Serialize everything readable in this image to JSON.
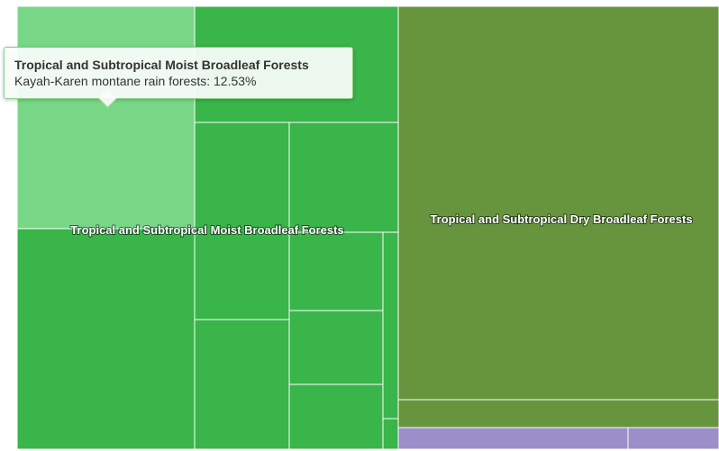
{
  "chart_data": {
    "type": "treemap",
    "groups": [
      {
        "name": "Tropical and Subtropical Moist Broadleaf Forests",
        "color": "#39b54a",
        "cells": [
          {
            "name": "Kayah-Karen montane rain forests",
            "value": 12.53,
            "highlighted": true
          },
          {
            "name": "",
            "value": 8.4
          },
          {
            "name": "",
            "value": 4.2
          },
          {
            "name": "",
            "value": 3.6
          },
          {
            "name": "",
            "value": 3.3
          },
          {
            "name": "",
            "value": 2.7
          },
          {
            "name": "",
            "value": 2.8
          },
          {
            "name": "",
            "value": 1.7
          },
          {
            "name": "",
            "value": 1.5
          },
          {
            "name": "",
            "value": 1.1
          },
          {
            "name": "",
            "value": 0.6
          },
          {
            "name": "",
            "value": 0.4
          }
        ]
      },
      {
        "name": "Tropical and Subtropical Dry Broadleaf Forests",
        "color": "#67953e",
        "cells": [
          {
            "name": "",
            "value": 44.5
          },
          {
            "name": "",
            "value": 1.7
          }
        ]
      },
      {
        "name": "",
        "color": "#9b8fc9",
        "cells": [
          {
            "name": "",
            "value": 1.3
          },
          {
            "name": "",
            "value": 0.5
          }
        ]
      }
    ],
    "highlight_color": "#78d787",
    "tooltip": {
      "title": "Tropical and Subtropical Moist Broadleaf Forests",
      "text": "Kayah-Karen montane rain forests: 12.53%"
    }
  }
}
